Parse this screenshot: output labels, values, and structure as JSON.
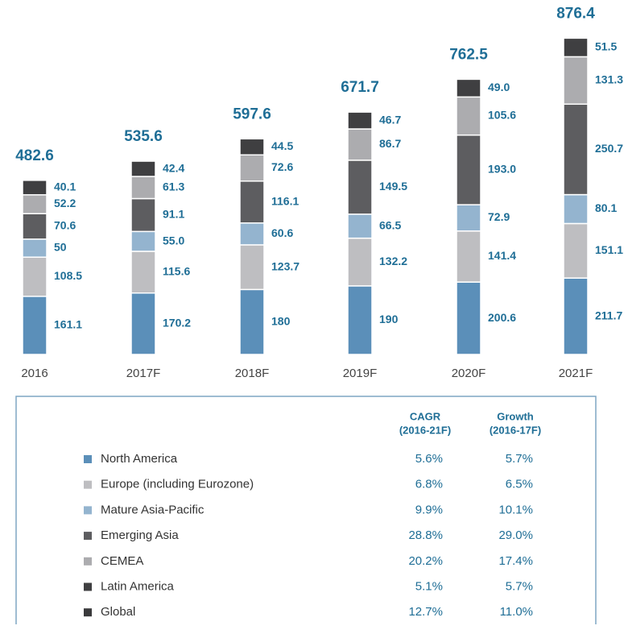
{
  "chart_data": {
    "type": "bar",
    "categories": [
      "2016",
      "2017F",
      "2018F",
      "2019F",
      "2020F",
      "2021F"
    ],
    "series": [
      {
        "name": "North America",
        "color": "#5b8fb9",
        "values": [
          161.1,
          170.2,
          180,
          190,
          200.6,
          211.7
        ]
      },
      {
        "name": "Europe (including Eurozone)",
        "color": "#bebec1",
        "values": [
          108.5,
          115.6,
          123.7,
          132.2,
          141.4,
          151.1
        ]
      },
      {
        "name": "Mature Asia-Pacific",
        "color": "#94b4cf",
        "values": [
          50,
          55.0,
          60.6,
          66.5,
          72.9,
          80.1
        ],
        "value_labels": [
          "50",
          "55.0",
          "60.6",
          "66.5",
          "72.9",
          "80.1"
        ]
      },
      {
        "name": "Emerging Asia",
        "color": "#5d5d60",
        "values": [
          70.6,
          91.1,
          116.1,
          149.5,
          193.0,
          250.7
        ],
        "value_labels": [
          "70.6",
          "91.1",
          "116.1",
          "149.5",
          "193.0",
          "250.7"
        ]
      },
      {
        "name": "CEMEA",
        "color": "#acacaf",
        "values": [
          52.2,
          61.3,
          72.6,
          86.7,
          105.6,
          131.3
        ]
      },
      {
        "name": "Latin America",
        "color": "#3f3f41",
        "values": [
          40.1,
          42.4,
          44.5,
          46.7,
          49.0,
          51.5
        ],
        "value_labels": [
          "40.1",
          "42.4",
          "44.5",
          "46.7",
          "49.0",
          "51.5"
        ]
      }
    ],
    "totals": [
      482.6,
      535.6,
      597.6,
      671.7,
      762.5,
      876.4
    ]
  },
  "table": {
    "headers": [
      [
        "CAGR",
        "(2016-21F)"
      ],
      [
        "Growth",
        "(2016-17F)"
      ]
    ],
    "total_row": {
      "name": "Global",
      "color": "#3a3a3c"
    },
    "rows": [
      [
        "5.6%",
        "5.7%"
      ],
      [
        "6.8%",
        "6.5%"
      ],
      [
        "9.9%",
        "10.1%"
      ],
      [
        "28.8%",
        "29.0%"
      ],
      [
        "20.2%",
        "17.4%"
      ],
      [
        "5.1%",
        "5.7%"
      ],
      [
        "12.7%",
        "11.0%"
      ]
    ]
  }
}
